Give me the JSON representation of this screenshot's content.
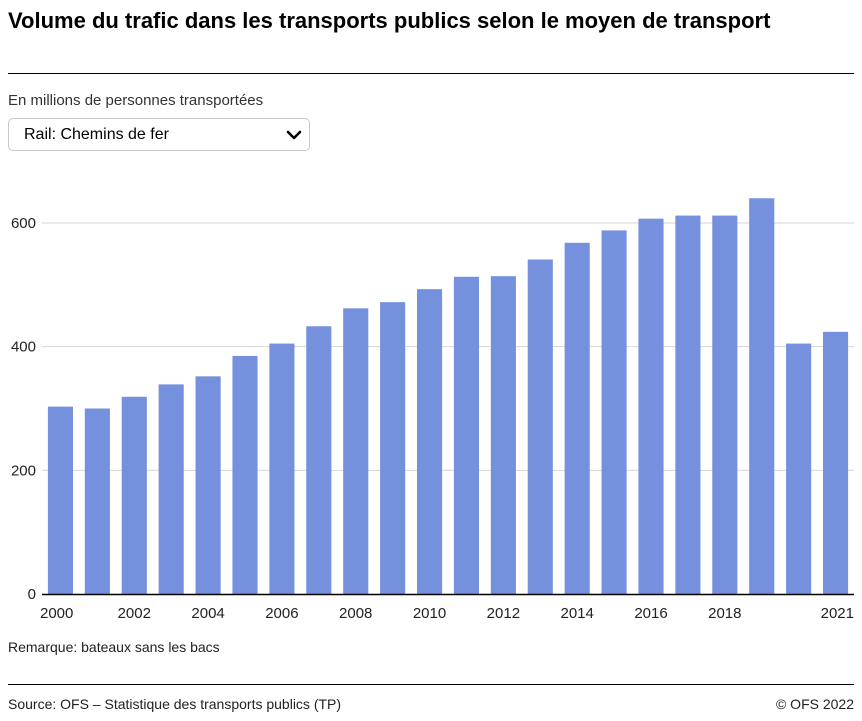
{
  "title": "Volume du trafic dans les transports publics selon le moyen de transport",
  "subtitle": "En millions de personnes transportées",
  "select": {
    "value": "Rail: Chemins de fer",
    "icon": "chevron-down-icon"
  },
  "note": "Remarque: bateaux sans les bacs",
  "source": "Source: OFS – Statistique des transports publics (TP)",
  "copyright": "© OFS 2022",
  "colors": {
    "bar": "#7590dc",
    "grid": "#d6d6d6",
    "axis": "#000000"
  },
  "chart_data": {
    "type": "bar",
    "categories": [
      "2000",
      "2001",
      "2002",
      "2003",
      "2004",
      "2005",
      "2006",
      "2007",
      "2008",
      "2009",
      "2010",
      "2011",
      "2012",
      "2013",
      "2014",
      "2015",
      "2016",
      "2017",
      "2018",
      "2019",
      "2020",
      "2021"
    ],
    "values": [
      303,
      300,
      319,
      339,
      352,
      385,
      405,
      433,
      462,
      472,
      493,
      513,
      514,
      541,
      568,
      588,
      607,
      612,
      612,
      640,
      405,
      424
    ],
    "x_tick_labels": [
      "2000",
      "2002",
      "2004",
      "2006",
      "2008",
      "2010",
      "2012",
      "2014",
      "2016",
      "2018",
      "2021"
    ],
    "y_ticks": [
      0,
      200,
      400,
      600
    ],
    "ylim": [
      0,
      680
    ],
    "grid": true,
    "legend": "none"
  }
}
